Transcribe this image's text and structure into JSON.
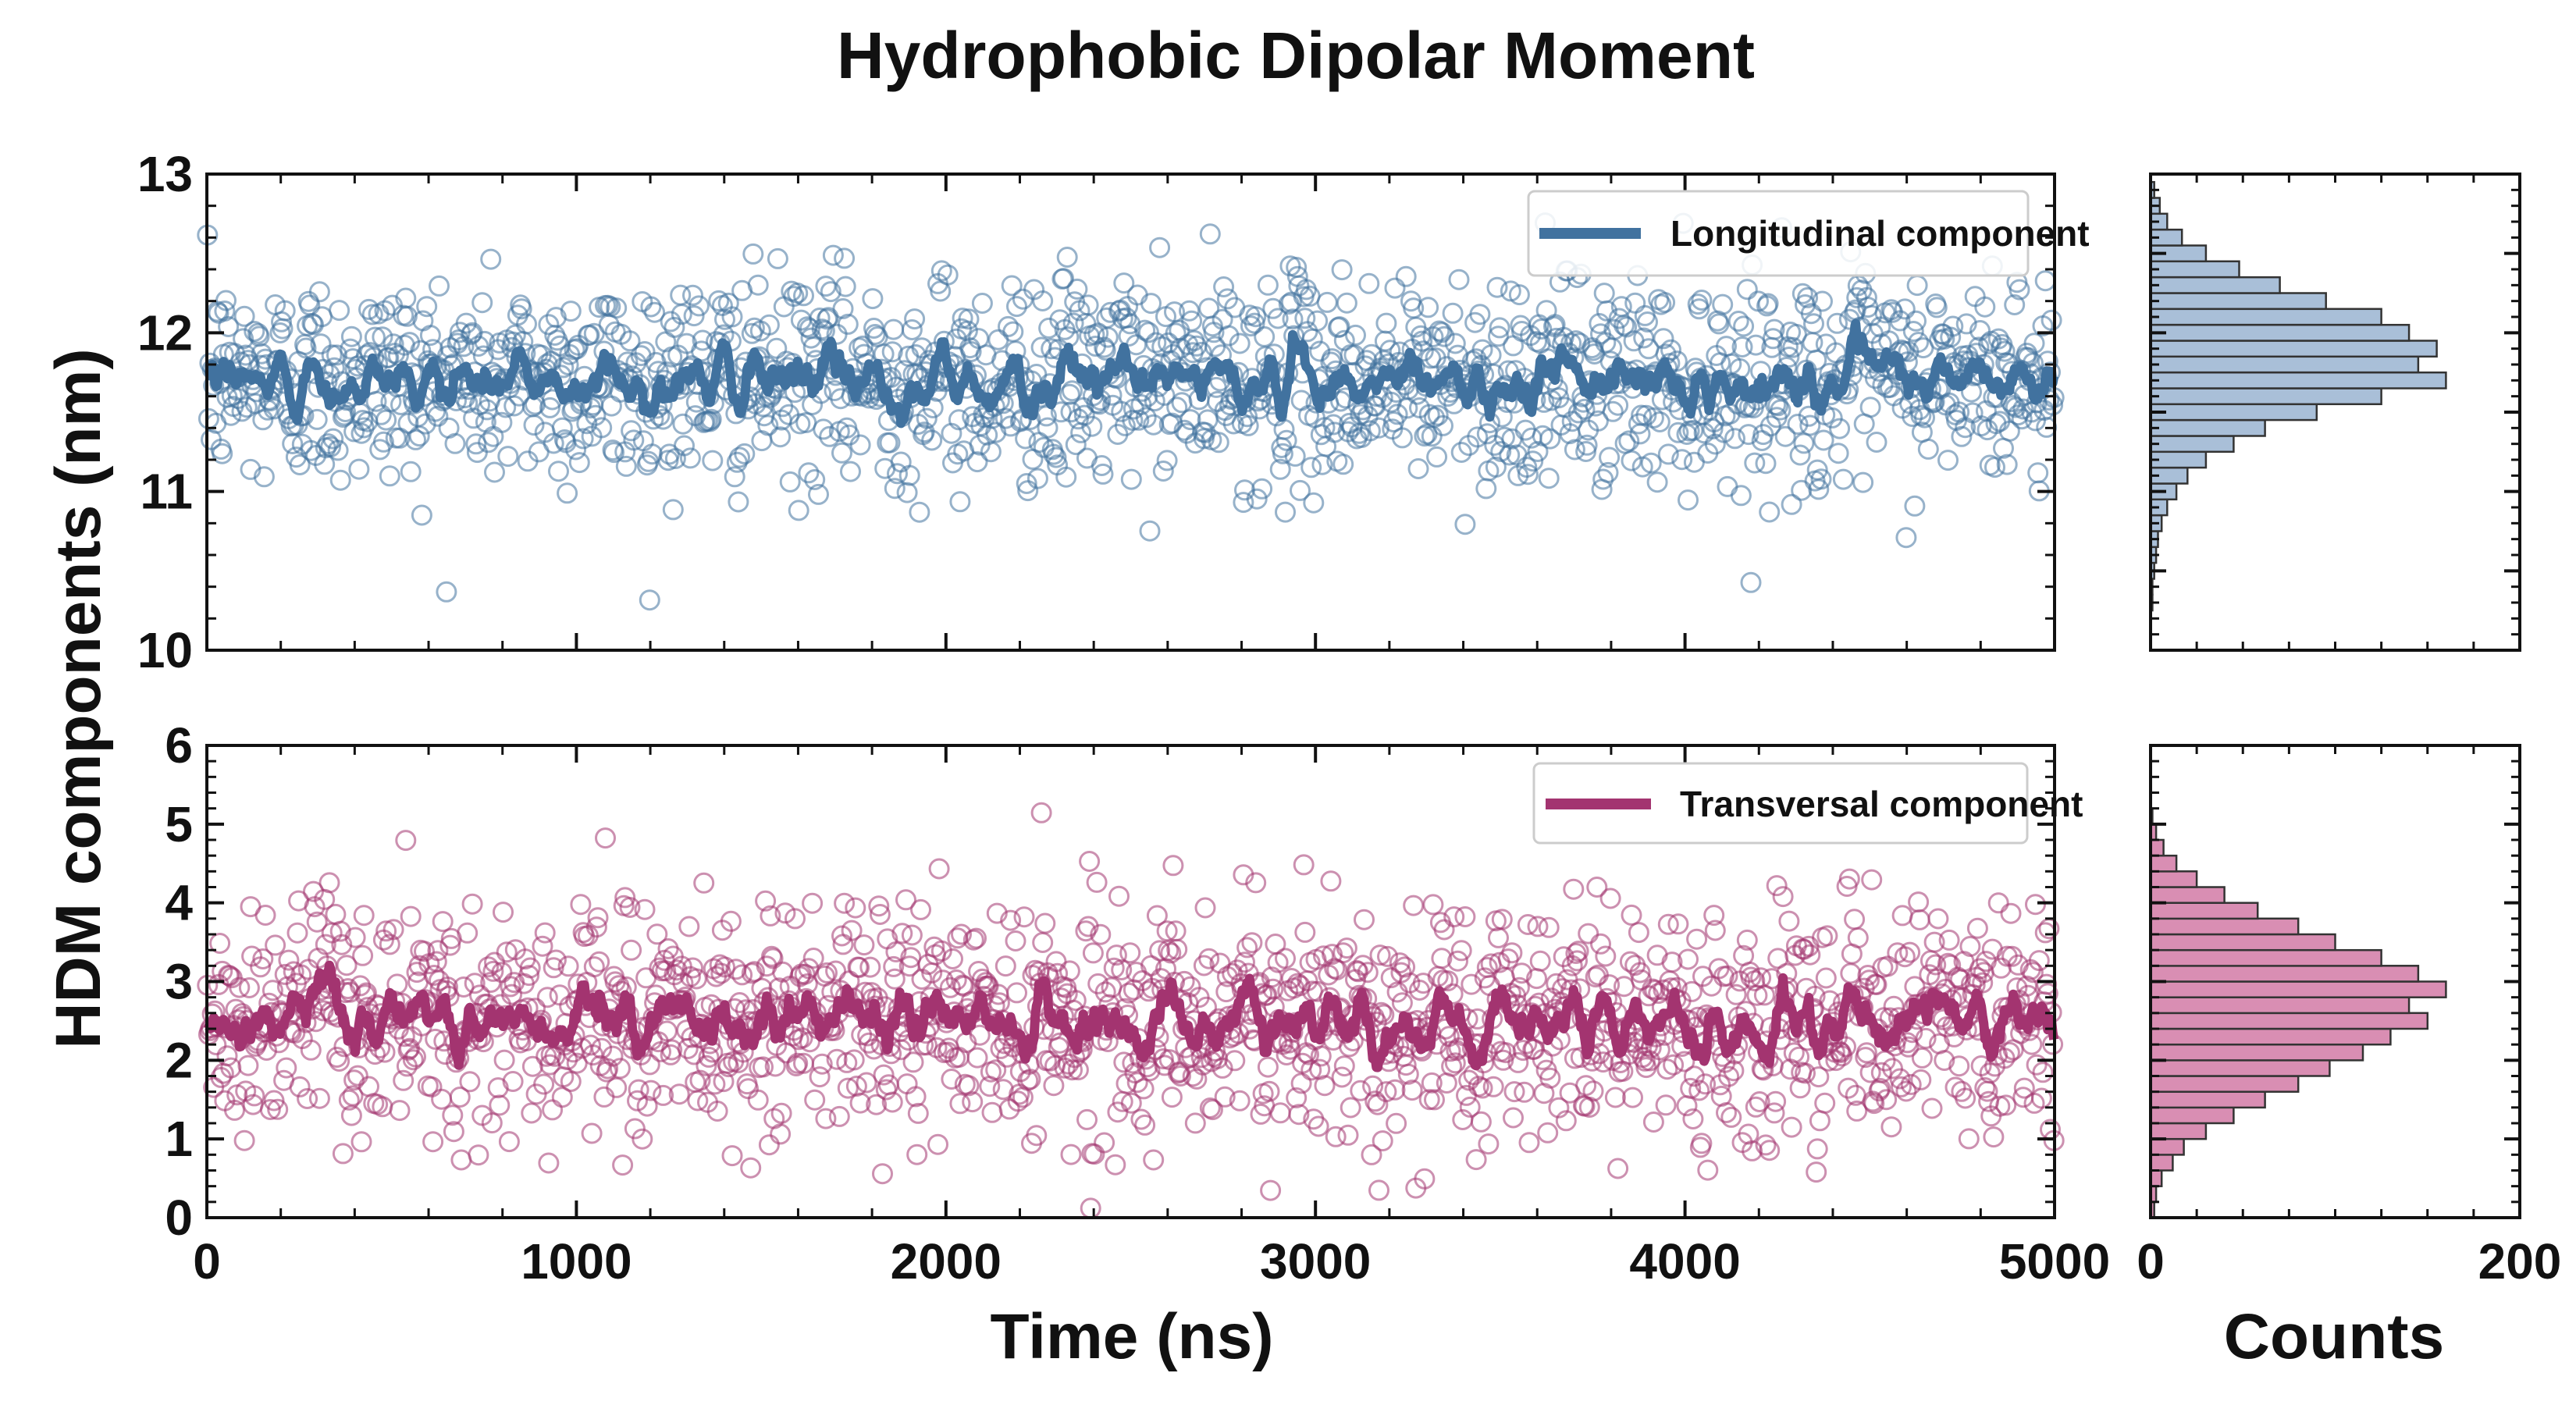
{
  "chart_data": {
    "title": "Hydrophobic Dipolar Moment",
    "shared_xlabel": "Time (ns)",
    "shared_ylabel": "HDM components (nm)",
    "hist_xlabel": "Counts",
    "panels": [
      {
        "type": "scatter",
        "series_name": "Longitudinal component",
        "color": "#41729f",
        "marker": "open-circle",
        "xlim": [
          0,
          5000
        ],
        "ylim": [
          10,
          13
        ],
        "yticks": [
          "10",
          "11",
          "12",
          "13"
        ],
        "xticks": [],
        "mean": 11.7,
        "spread": 0.33,
        "n_points": 1500,
        "smoothed_line": true,
        "legend_position": "top-right"
      },
      {
        "type": "scatter",
        "series_name": "Transversal component",
        "color": "#a33470",
        "marker": "open-circle",
        "xlim": [
          0,
          5000
        ],
        "ylim": [
          0,
          6
        ],
        "yticks": [
          "0",
          "1",
          "2",
          "3",
          "4",
          "5",
          "6"
        ],
        "xticks": [
          "0",
          "1000",
          "2000",
          "3000",
          "4000",
          "5000"
        ],
        "mean": 2.5,
        "spread": 0.75,
        "n_points": 1500,
        "smoothed_line": true,
        "legend_position": "top-right"
      }
    ],
    "histograms": [
      {
        "type": "bar",
        "orientation": "horizontal",
        "color": "#a9bfd8",
        "edge_color": "#333333",
        "bin_width": 0.1,
        "ylim": [
          10,
          13
        ],
        "xlim": [
          0,
          200
        ],
        "bins": [
          {
            "y": 10.3,
            "count": 1
          },
          {
            "y": 10.4,
            "count": 1
          },
          {
            "y": 10.5,
            "count": 2
          },
          {
            "y": 10.6,
            "count": 3
          },
          {
            "y": 10.7,
            "count": 4
          },
          {
            "y": 10.8,
            "count": 6
          },
          {
            "y": 10.9,
            "count": 9
          },
          {
            "y": 11.0,
            "count": 14
          },
          {
            "y": 11.1,
            "count": 20
          },
          {
            "y": 11.2,
            "count": 30
          },
          {
            "y": 11.3,
            "count": 45
          },
          {
            "y": 11.4,
            "count": 62
          },
          {
            "y": 11.5,
            "count": 90
          },
          {
            "y": 11.6,
            "count": 125
          },
          {
            "y": 11.7,
            "count": 160
          },
          {
            "y": 11.8,
            "count": 145
          },
          {
            "y": 11.9,
            "count": 155
          },
          {
            "y": 12.0,
            "count": 140
          },
          {
            "y": 12.1,
            "count": 125
          },
          {
            "y": 12.2,
            "count": 95
          },
          {
            "y": 12.3,
            "count": 70
          },
          {
            "y": 12.4,
            "count": 48
          },
          {
            "y": 12.5,
            "count": 30
          },
          {
            "y": 12.6,
            "count": 17
          },
          {
            "y": 12.7,
            "count": 9
          },
          {
            "y": 12.8,
            "count": 5
          },
          {
            "y": 12.9,
            "count": 2
          }
        ]
      },
      {
        "type": "bar",
        "orientation": "horizontal",
        "color": "#d98eb3",
        "edge_color": "#333333",
        "bin_width": 0.2,
        "ylim": [
          0,
          6
        ],
        "xlim": [
          0,
          200
        ],
        "bins": [
          {
            "y": 0.1,
            "count": 2
          },
          {
            "y": 0.3,
            "count": 3
          },
          {
            "y": 0.5,
            "count": 6
          },
          {
            "y": 0.7,
            "count": 12
          },
          {
            "y": 0.9,
            "count": 18
          },
          {
            "y": 1.1,
            "count": 30
          },
          {
            "y": 1.3,
            "count": 45
          },
          {
            "y": 1.5,
            "count": 62
          },
          {
            "y": 1.7,
            "count": 80
          },
          {
            "y": 1.9,
            "count": 97
          },
          {
            "y": 2.1,
            "count": 115
          },
          {
            "y": 2.3,
            "count": 130
          },
          {
            "y": 2.5,
            "count": 150
          },
          {
            "y": 2.7,
            "count": 140
          },
          {
            "y": 2.9,
            "count": 160
          },
          {
            "y": 3.1,
            "count": 145
          },
          {
            "y": 3.3,
            "count": 125
          },
          {
            "y": 3.5,
            "count": 100
          },
          {
            "y": 3.7,
            "count": 80
          },
          {
            "y": 3.9,
            "count": 58
          },
          {
            "y": 4.1,
            "count": 40
          },
          {
            "y": 4.3,
            "count": 25
          },
          {
            "y": 4.5,
            "count": 14
          },
          {
            "y": 4.7,
            "count": 7
          },
          {
            "y": 4.9,
            "count": 3
          },
          {
            "y": 5.1,
            "count": 1
          }
        ]
      }
    ],
    "hist_xticks": [
      "0",
      "200"
    ]
  }
}
